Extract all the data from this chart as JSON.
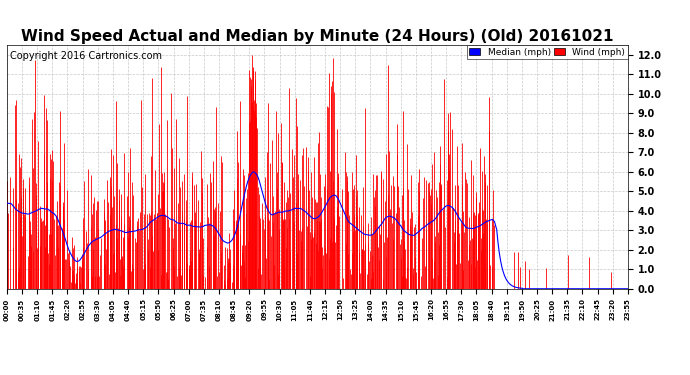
{
  "title": "Wind Speed Actual and Median by Minute (24 Hours) (Old) 20161021",
  "copyright": "Copyright 2016 Cartronics.com",
  "yticks": [
    0.0,
    1.0,
    2.0,
    3.0,
    4.0,
    5.0,
    6.0,
    7.0,
    8.0,
    9.0,
    10.0,
    11.0,
    12.0
  ],
  "ylim": [
    0.0,
    12.5
  ],
  "xlabel_ticks": [
    "00:00",
    "00:35",
    "01:10",
    "01:45",
    "02:20",
    "02:55",
    "03:30",
    "04:05",
    "04:40",
    "05:15",
    "05:50",
    "06:25",
    "07:00",
    "07:35",
    "08:10",
    "08:45",
    "09:20",
    "09:55",
    "10:30",
    "11:05",
    "11:40",
    "12:15",
    "12:50",
    "13:25",
    "14:00",
    "14:35",
    "15:10",
    "15:45",
    "16:20",
    "16:55",
    "17:30",
    "18:05",
    "18:40",
    "19:15",
    "19:50",
    "20:25",
    "21:00",
    "21:35",
    "22:10",
    "22:45",
    "23:20",
    "23:55"
  ],
  "wind_color": "#FF0000",
  "median_color": "#0000FF",
  "background_color": "#FFFFFF",
  "grid_color": "#BBBBBB",
  "title_fontsize": 11,
  "copyright_fontsize": 7
}
